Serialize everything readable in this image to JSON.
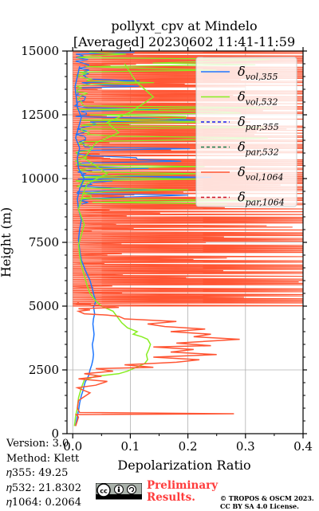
{
  "chart_data": {
    "type": "line",
    "title": "pollyxt_cpv at Mindelo",
    "subtitle": "[Averaged] 20230602 11:41-11:59",
    "xlabel": "Depolarization Ratio",
    "ylabel": "Height (m)",
    "xlim": [
      -0.01,
      0.4
    ],
    "ylim": [
      0,
      15000
    ],
    "xticks": [
      0.0,
      0.1,
      0.2,
      0.3,
      0.4
    ],
    "xtick_labels": [
      "0.0",
      "0.1",
      "0.2",
      "0.3",
      "0.4"
    ],
    "yticks": [
      0,
      2500,
      5000,
      7500,
      10000,
      12500,
      15000
    ],
    "ytick_labels": [
      "0",
      "2500",
      "5000",
      "7500",
      "10000",
      "12500",
      "15000"
    ],
    "grid": true,
    "legend_position": "upper right",
    "series": [
      {
        "name": "δvol,355",
        "legend_main": "δ",
        "legend_sub": "vol,355",
        "color": "#1f77ff",
        "dash": "solid",
        "x": [
          0.005,
          0.008,
          0.01,
          0.012,
          0.015,
          0.018,
          0.02,
          0.022,
          0.025,
          0.028,
          0.03,
          0.033,
          0.035,
          0.036,
          0.035,
          0.034,
          0.036,
          0.037,
          0.036,
          0.035,
          0.036,
          0.038,
          0.037,
          0.036,
          0.038,
          0.04,
          0.037,
          0.035,
          0.03,
          0.022,
          0.015,
          0.012,
          0.01,
          0.012,
          0.015,
          0.01,
          0.008,
          0.012,
          0.02,
          0.01,
          0.008,
          0.012,
          0.005,
          0.01,
          0.015,
          0.008,
          0.004,
          0.012
        ],
        "y": [
          300,
          700,
          900,
          1200,
          1500,
          1700,
          1900,
          2050,
          2150,
          2300,
          2500,
          2700,
          2900,
          3100,
          3300,
          3500,
          3700,
          3900,
          4100,
          4300,
          4500,
          4700,
          4850,
          4950,
          5050,
          5200,
          5400,
          5600,
          6000,
          6400,
          6800,
          7200,
          7600,
          8000,
          8400,
          8800,
          9200,
          9600,
          10000,
          10400,
          10800,
          11200,
          11600,
          12000,
          12400,
          12800,
          13600,
          14400
        ]
      },
      {
        "name": "δvol,532",
        "legend_main": "δ",
        "legend_sub": "vol,532",
        "color": "#88ee22",
        "dash": "solid",
        "x": [
          0.003,
          0.005,
          0.008,
          0.01,
          0.015,
          0.02,
          0.04,
          0.08,
          0.095,
          0.11,
          0.125,
          0.13,
          0.128,
          0.132,
          0.135,
          0.13,
          0.12,
          0.105,
          0.112,
          0.095,
          0.085,
          0.08,
          0.075,
          0.07,
          0.06,
          0.05,
          0.04,
          0.03,
          0.025,
          0.02,
          0.015,
          0.012,
          0.01,
          0.015,
          0.02,
          0.01,
          0.018,
          0.025,
          0.06,
          0.02,
          0.04,
          0.08,
          0.06,
          0.1,
          0.14,
          0.11,
          0.09
        ],
        "y": [
          300,
          700,
          1000,
          1400,
          1800,
          2100,
          2250,
          2350,
          2450,
          2600,
          2750,
          2900,
          3100,
          3300,
          3500,
          3700,
          3800,
          3900,
          4000,
          4150,
          4350,
          4500,
          4650,
          4800,
          4900,
          5000,
          5200,
          5500,
          5800,
          6200,
          6600,
          7000,
          7400,
          7800,
          8200,
          8800,
          9400,
          9800,
          10200,
          10800,
          11400,
          11800,
          12200,
          12600,
          13200,
          13800,
          14500
        ]
      },
      {
        "name": "δpar,355",
        "legend_main": "δ",
        "legend_sub": "par,355",
        "color": "#1a1aee",
        "dash": "dashed",
        "x": [],
        "y": []
      },
      {
        "name": "δpar,532",
        "legend_main": "δ",
        "legend_sub": "par,532",
        "color": "#1a7a4a",
        "dash": "dashed",
        "x": [],
        "y": []
      },
      {
        "name": "δvol,1064",
        "legend_main": "δ",
        "legend_sub": "vol,1064",
        "color": "#ff5533",
        "dash": "solid",
        "x": [
          0.005,
          0.01,
          0.006,
          0.28,
          0.012,
          0.008,
          0.01,
          0.03,
          0.008,
          0.04,
          0.06,
          0.01,
          0.05,
          0.02,
          0.07,
          0.04,
          0.14,
          0.09,
          0.18,
          0.22,
          0.14,
          0.25,
          0.17,
          0.21,
          0.14,
          0.24,
          0.18,
          0.29,
          0.21,
          0.24,
          0.17,
          0.23,
          0.16,
          0.13,
          0.18,
          0.09,
          0.08,
          0.06,
          0.02,
          0.01,
          0.03,
          0.01,
          0.08,
          0.05,
          0.03,
          0.008,
          0.01
        ],
        "y": [
          300,
          650,
          750,
          780,
          830,
          1000,
          1300,
          1600,
          1800,
          1900,
          2050,
          2150,
          2250,
          2350,
          2450,
          2550,
          2600,
          2700,
          2800,
          2900,
          3000,
          3100,
          3200,
          3300,
          3400,
          3450,
          3550,
          3700,
          3800,
          3900,
          4000,
          4100,
          4200,
          4300,
          4400,
          4500,
          4600,
          4650,
          4700,
          4800,
          4850,
          4900,
          4950,
          5000,
          5050,
          5100,
          5150
        ]
      },
      {
        "name": "δpar,1064",
        "legend_main": "δ",
        "legend_sub": "par,1064",
        "color": "#cc1122",
        "dash": "dashed",
        "x": [],
        "y": []
      }
    ],
    "noisy_1064_above_km": 5
  },
  "footer": {
    "version": "Version: 3.0",
    "method": "Method: Klett",
    "eta355": "𝜂355:  49.25",
    "eta532": "𝜂532: 21.8302",
    "eta1064": "𝜂1064: 0.2064",
    "preliminary_line1": "Preliminary",
    "preliminary_line2": "Results.",
    "copyright_line1": "© TROPOS & OSCM 2023.",
    "copyright_line2": "CC BY SA 4.0 License.",
    "license_badge": "cc-by-sa-icon"
  }
}
